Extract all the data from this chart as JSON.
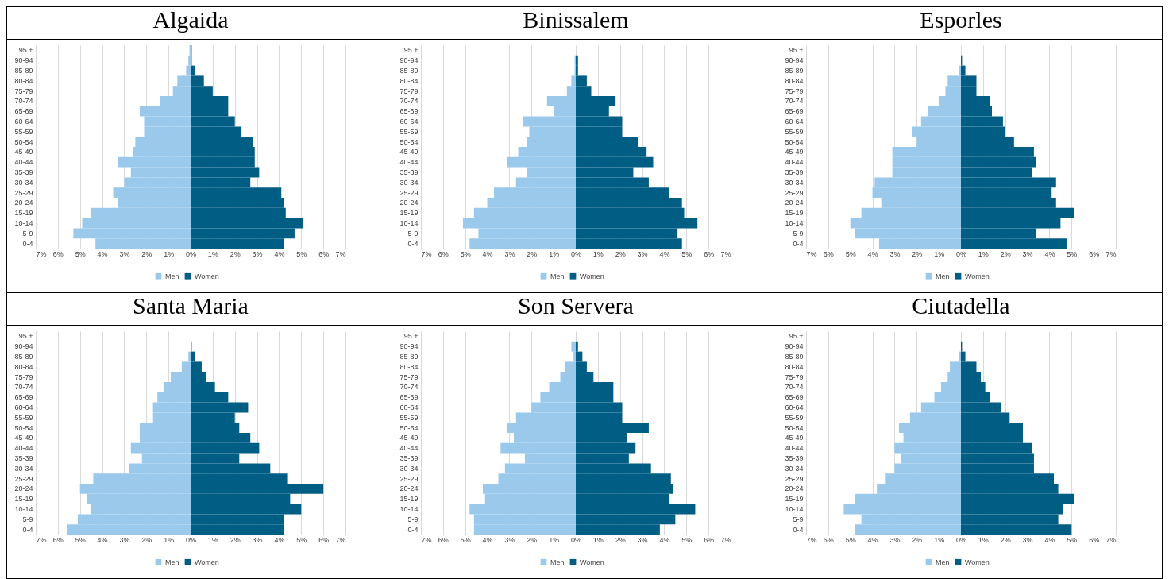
{
  "chart_data": [
    {
      "type": "bar",
      "orientation": "horizontal",
      "title": "Algaida",
      "stacked": true,
      "categories": [
        "95 +",
        "90-94",
        "85-89",
        "80-84",
        "75-79",
        "70-74",
        "65-69",
        "60-64",
        "55-59",
        "50-54",
        "45-49",
        "40-44",
        "35-39",
        "30-34",
        "25-29",
        "20-24",
        "15-19",
        "10-14",
        "5-9",
        "0-4"
      ],
      "series": [
        {
          "name": "Men",
          "color": "#9ac9eb",
          "values": [
            -0.05,
            -0.1,
            -0.2,
            -0.6,
            -0.8,
            -1.4,
            -2.3,
            -2.1,
            -2.1,
            -2.5,
            -2.6,
            -3.3,
            -2.7,
            -3.0,
            -3.5,
            -3.3,
            -4.5,
            -4.9,
            -5.3,
            -4.3
          ]
        },
        {
          "name": "Women",
          "color": "#005d84",
          "values": [
            0.05,
            0.05,
            0.2,
            0.6,
            1.0,
            1.7,
            1.7,
            2.0,
            2.3,
            2.8,
            2.9,
            2.9,
            3.1,
            2.7,
            4.1,
            4.2,
            4.3,
            5.1,
            4.7,
            4.2
          ]
        }
      ],
      "xlim": [
        -7,
        7
      ],
      "xticks": [
        {
          "value": -7,
          "label": "7%"
        },
        {
          "value": -6,
          "label": "6%"
        },
        {
          "value": -5,
          "label": "5%"
        },
        {
          "value": -4,
          "label": "4%"
        },
        {
          "value": -3,
          "label": "3%"
        },
        {
          "value": -2,
          "label": "2%"
        },
        {
          "value": -1,
          "label": "1%"
        },
        {
          "value": 0,
          "label": "0%"
        },
        {
          "value": 1,
          "label": "1%"
        },
        {
          "value": 2,
          "label": "2%"
        },
        {
          "value": 3,
          "label": "3%"
        },
        {
          "value": 4,
          "label": "4%"
        },
        {
          "value": 5,
          "label": "5%"
        },
        {
          "value": 6,
          "label": "6%"
        },
        {
          "value": 7,
          "label": "7%"
        }
      ],
      "grid": "x",
      "legend": "bottom"
    },
    {
      "type": "bar",
      "orientation": "horizontal",
      "title": "Binissalem",
      "stacked": true,
      "categories": [
        "95 +",
        "90-94",
        "85-89",
        "80-84",
        "75-79",
        "70-74",
        "65-69",
        "60-64",
        "55-59",
        "50-54",
        "45-49",
        "40-44",
        "35-39",
        "30-34",
        "25-29",
        "20-24",
        "15-19",
        "10-14",
        "5-9",
        "0-4"
      ],
      "series": [
        {
          "name": "Men",
          "color": "#9ac9eb",
          "values": [
            0,
            -0.05,
            -0.05,
            -0.2,
            -0.4,
            -1.3,
            -1.0,
            -2.4,
            -2.1,
            -2.2,
            -2.6,
            -3.1,
            -2.2,
            -2.7,
            -3.7,
            -4.0,
            -4.6,
            -5.1,
            -4.4,
            -4.8
          ]
        },
        {
          "name": "Women",
          "color": "#005d84",
          "values": [
            0,
            0.1,
            0.1,
            0.5,
            0.7,
            1.8,
            1.5,
            2.1,
            2.1,
            2.8,
            3.2,
            3.5,
            2.6,
            3.3,
            4.2,
            4.8,
            4.9,
            5.5,
            4.6,
            4.8
          ]
        }
      ],
      "xlim": [
        -7,
        7
      ],
      "xticks": [
        {
          "value": -7,
          "label": "7%"
        },
        {
          "value": -6,
          "label": "6%"
        },
        {
          "value": -5,
          "label": "5%"
        },
        {
          "value": -4,
          "label": "4%"
        },
        {
          "value": -3,
          "label": "3%"
        },
        {
          "value": -2,
          "label": "2%"
        },
        {
          "value": -1,
          "label": "1%"
        },
        {
          "value": 0,
          "label": "0%"
        },
        {
          "value": 1,
          "label": "1%"
        },
        {
          "value": 2,
          "label": "2%"
        },
        {
          "value": 3,
          "label": "3%"
        },
        {
          "value": 4,
          "label": "4%"
        },
        {
          "value": 5,
          "label": "5%"
        },
        {
          "value": 6,
          "label": "6%"
        },
        {
          "value": 7,
          "label": "7%"
        }
      ],
      "grid": "x",
      "legend": "bottom"
    },
    {
      "type": "bar",
      "orientation": "horizontal",
      "title": "Esporles",
      "stacked": true,
      "categories": [
        "95 +",
        "90-94",
        "85-89",
        "80-84",
        "75-79",
        "70-74",
        "65-69",
        "60-64",
        "55-59",
        "50-54",
        "45-49",
        "40-44",
        "35-39",
        "30-34",
        "25-29",
        "20-24",
        "15-19",
        "10-14",
        "5-9",
        "0-4"
      ],
      "series": [
        {
          "name": "Men",
          "color": "#9ac9eb",
          "values": [
            0,
            0,
            -0.1,
            -0.6,
            -0.7,
            -1.0,
            -1.5,
            -1.8,
            -2.2,
            -2.0,
            -3.1,
            -3.1,
            -3.1,
            -3.9,
            -4.0,
            -3.6,
            -4.5,
            -5.0,
            -4.8,
            -3.7
          ]
        },
        {
          "name": "Women",
          "color": "#005d84",
          "values": [
            0,
            0.05,
            0.2,
            0.7,
            0.7,
            1.3,
            1.4,
            1.9,
            2.0,
            2.4,
            3.3,
            3.4,
            3.2,
            4.3,
            4.1,
            4.3,
            5.1,
            4.5,
            3.4,
            4.8
          ]
        }
      ],
      "xlim": [
        -7,
        7
      ],
      "xticks": [
        {
          "value": -7,
          "label": "7%"
        },
        {
          "value": -6,
          "label": "6%"
        },
        {
          "value": -5,
          "label": "5%"
        },
        {
          "value": -4,
          "label": "4%"
        },
        {
          "value": -3,
          "label": "3%"
        },
        {
          "value": -2,
          "label": "2%"
        },
        {
          "value": -1,
          "label": "1%"
        },
        {
          "value": 0,
          "label": "0%"
        },
        {
          "value": 1,
          "label": "1%"
        },
        {
          "value": 2,
          "label": "2%"
        },
        {
          "value": 3,
          "label": "3%"
        },
        {
          "value": 4,
          "label": "4%"
        },
        {
          "value": 5,
          "label": "5%"
        },
        {
          "value": 6,
          "label": "6%"
        },
        {
          "value": 7,
          "label": "7%"
        }
      ],
      "grid": "x",
      "legend": "bottom"
    },
    {
      "type": "bar",
      "orientation": "horizontal",
      "title": "Santa Maria",
      "stacked": true,
      "categories": [
        "95 +",
        "90-94",
        "85-89",
        "80-84",
        "75-79",
        "70-74",
        "65-69",
        "60-64",
        "55-59",
        "50-54",
        "45-49",
        "40-44",
        "35-39",
        "30-34",
        "25-29",
        "20-24",
        "15-19",
        "10-14",
        "5-9",
        "0-4"
      ],
      "series": [
        {
          "name": "Men",
          "color": "#9ac9eb",
          "values": [
            0,
            0,
            -0.1,
            -0.4,
            -0.9,
            -1.2,
            -1.5,
            -1.7,
            -1.7,
            -2.3,
            -2.3,
            -2.7,
            -2.2,
            -2.8,
            -4.4,
            -5.0,
            -4.7,
            -4.5,
            -5.1,
            -5.6
          ]
        },
        {
          "name": "Women",
          "color": "#005d84",
          "values": [
            0,
            0.05,
            0.2,
            0.5,
            0.7,
            1.1,
            1.7,
            2.6,
            2.0,
            2.2,
            2.7,
            3.1,
            2.2,
            3.6,
            4.4,
            6.0,
            4.5,
            5.0,
            4.2,
            4.2
          ]
        }
      ],
      "xlim": [
        -7,
        7
      ],
      "xticks": [
        {
          "value": -7,
          "label": "7%"
        },
        {
          "value": -6,
          "label": "6%"
        },
        {
          "value": -5,
          "label": "5%"
        },
        {
          "value": -4,
          "label": "4%"
        },
        {
          "value": -3,
          "label": "3%"
        },
        {
          "value": -2,
          "label": "2%"
        },
        {
          "value": -1,
          "label": "1%"
        },
        {
          "value": 0,
          "label": "0%"
        },
        {
          "value": 1,
          "label": "1%"
        },
        {
          "value": 2,
          "label": "2%"
        },
        {
          "value": 3,
          "label": "3%"
        },
        {
          "value": 4,
          "label": "4%"
        },
        {
          "value": 5,
          "label": "5%"
        },
        {
          "value": 6,
          "label": "6%"
        },
        {
          "value": 7,
          "label": "7%"
        }
      ],
      "grid": "x",
      "legend": "bottom"
    },
    {
      "type": "bar",
      "orientation": "horizontal",
      "title": "Son Servera",
      "stacked": true,
      "categories": [
        "95 +",
        "90-94",
        "85-89",
        "80-84",
        "75-79",
        "70-74",
        "65-69",
        "60-64",
        "55-59",
        "50-54",
        "45-49",
        "40-44",
        "35-39",
        "30-34",
        "25-29",
        "20-24",
        "15-19",
        "10-14",
        "5-9",
        "0-4"
      ],
      "series": [
        {
          "name": "Men",
          "color": "#9ac9eb",
          "values": [
            0,
            -0.2,
            -0.1,
            -0.5,
            -0.7,
            -1.2,
            -1.6,
            -2.0,
            -2.7,
            -3.1,
            -2.8,
            -3.4,
            -2.3,
            -3.2,
            -3.5,
            -4.2,
            -4.1,
            -4.8,
            -4.6,
            -4.6
          ]
        },
        {
          "name": "Women",
          "color": "#005d84",
          "values": [
            0,
            0.1,
            0.3,
            0.5,
            0.8,
            1.7,
            1.7,
            2.1,
            2.1,
            3.3,
            2.3,
            2.7,
            2.4,
            3.4,
            4.3,
            4.4,
            4.2,
            5.4,
            4.5,
            3.8
          ]
        }
      ],
      "xlim": [
        -7,
        7
      ],
      "xticks": [
        {
          "value": -7,
          "label": "7%"
        },
        {
          "value": -6,
          "label": "6%"
        },
        {
          "value": -5,
          "label": "5%"
        },
        {
          "value": -4,
          "label": "4%"
        },
        {
          "value": -3,
          "label": "3%"
        },
        {
          "value": -2,
          "label": "2%"
        },
        {
          "value": -1,
          "label": "1%"
        },
        {
          "value": 0,
          "label": "0%"
        },
        {
          "value": 1,
          "label": "1%"
        },
        {
          "value": 2,
          "label": "2%"
        },
        {
          "value": 3,
          "label": "3%"
        },
        {
          "value": 4,
          "label": "4%"
        },
        {
          "value": 5,
          "label": "5%"
        },
        {
          "value": 6,
          "label": "6%"
        },
        {
          "value": 7,
          "label": "7%"
        }
      ],
      "grid": "x",
      "legend": "bottom"
    },
    {
      "type": "bar",
      "orientation": "horizontal",
      "title": "Ciutadella",
      "stacked": true,
      "categories": [
        "95 +",
        "90-94",
        "85-89",
        "80-84",
        "75-79",
        "70-74",
        "65-69",
        "60-64",
        "55-59",
        "50-54",
        "45-49",
        "40-44",
        "35-39",
        "30-34",
        "25-29",
        "20-24",
        "15-19",
        "10-14",
        "5-9",
        "0-4"
      ],
      "series": [
        {
          "name": "Men",
          "color": "#9ac9eb",
          "values": [
            0,
            0,
            -0.1,
            -0.5,
            -0.6,
            -0.9,
            -1.2,
            -1.8,
            -2.3,
            -2.8,
            -2.6,
            -3.0,
            -2.7,
            -3.0,
            -3.4,
            -3.8,
            -4.8,
            -5.3,
            -4.5,
            -4.8
          ]
        },
        {
          "name": "Women",
          "color": "#005d84",
          "values": [
            0,
            0.05,
            0.2,
            0.7,
            0.9,
            1.1,
            1.3,
            1.8,
            2.2,
            2.8,
            2.8,
            3.2,
            3.3,
            3.3,
            4.2,
            4.4,
            5.1,
            4.6,
            4.4,
            5.0
          ]
        }
      ],
      "xlim": [
        -7,
        7
      ],
      "xticks": [
        {
          "value": -7,
          "label": "7%"
        },
        {
          "value": -6,
          "label": "6%"
        },
        {
          "value": -5,
          "label": "5%"
        },
        {
          "value": -4,
          "label": "4%"
        },
        {
          "value": -3,
          "label": "3%"
        },
        {
          "value": -2,
          "label": "2%"
        },
        {
          "value": -1,
          "label": "1%"
        },
        {
          "value": 0,
          "label": "0%"
        },
        {
          "value": 1,
          "label": "1%"
        },
        {
          "value": 2,
          "label": "2%"
        },
        {
          "value": 3,
          "label": "3%"
        },
        {
          "value": 4,
          "label": "4%"
        },
        {
          "value": 5,
          "label": "5%"
        },
        {
          "value": 6,
          "label": "6%"
        },
        {
          "value": 7,
          "label": "7%"
        }
      ],
      "grid": "x",
      "legend": "bottom"
    }
  ]
}
